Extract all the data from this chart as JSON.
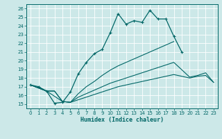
{
  "xlabel": "Humidex (Indice chaleur)",
  "background_color": "#cce8e8",
  "grid_color": "#ffffff",
  "line_color": "#006666",
  "xlim": [
    -0.5,
    23.5
  ],
  "ylim": [
    14.5,
    26.5
  ],
  "yticks": [
    15,
    16,
    17,
    18,
    19,
    20,
    21,
    22,
    23,
    24,
    25,
    26
  ],
  "xticks": [
    0,
    1,
    2,
    3,
    4,
    5,
    6,
    7,
    8,
    9,
    10,
    11,
    12,
    13,
    14,
    15,
    16,
    17,
    18,
    19,
    20,
    21,
    22,
    23
  ],
  "line1_x": [
    0,
    1,
    2,
    3,
    4,
    5,
    6,
    7,
    8,
    9,
    10,
    11,
    12,
    13,
    14,
    15,
    16,
    17,
    18,
    19
  ],
  "line1_y": [
    17.2,
    17.0,
    16.5,
    15.1,
    15.2,
    16.4,
    18.5,
    19.8,
    20.8,
    21.3,
    23.2,
    25.4,
    24.2,
    24.6,
    24.4,
    25.8,
    24.8,
    24.8,
    22.8,
    21.0
  ],
  "line2_x": [
    0,
    2,
    3,
    4,
    5,
    6,
    7,
    8,
    9,
    10,
    11,
    12,
    13,
    14,
    15,
    16,
    17,
    18
  ],
  "line2_y": [
    17.2,
    16.5,
    16.5,
    15.3,
    15.2,
    16.2,
    17.0,
    17.6,
    18.3,
    18.9,
    19.4,
    19.8,
    20.2,
    20.6,
    21.0,
    21.4,
    21.8,
    22.2
  ],
  "line3_x": [
    0,
    2,
    3,
    4,
    5,
    6,
    7,
    8,
    9,
    10,
    11,
    12,
    13,
    14,
    15,
    16,
    17,
    18,
    20,
    21,
    22,
    23
  ],
  "line3_y": [
    17.2,
    16.5,
    16.5,
    15.3,
    15.2,
    15.8,
    16.2,
    16.6,
    17.0,
    17.4,
    17.7,
    18.0,
    18.3,
    18.6,
    18.9,
    19.2,
    19.5,
    19.8,
    18.1,
    18.3,
    18.6,
    17.5
  ],
  "line4_x": [
    0,
    2,
    4,
    5,
    6,
    7,
    8,
    9,
    10,
    11,
    12,
    13,
    14,
    15,
    16,
    17,
    18,
    20,
    21,
    22,
    23
  ],
  "line4_y": [
    17.2,
    16.5,
    15.3,
    15.2,
    15.5,
    15.8,
    16.1,
    16.4,
    16.7,
    17.0,
    17.2,
    17.4,
    17.6,
    17.8,
    18.0,
    18.2,
    18.4,
    18.0,
    18.2,
    18.3,
    17.5
  ]
}
